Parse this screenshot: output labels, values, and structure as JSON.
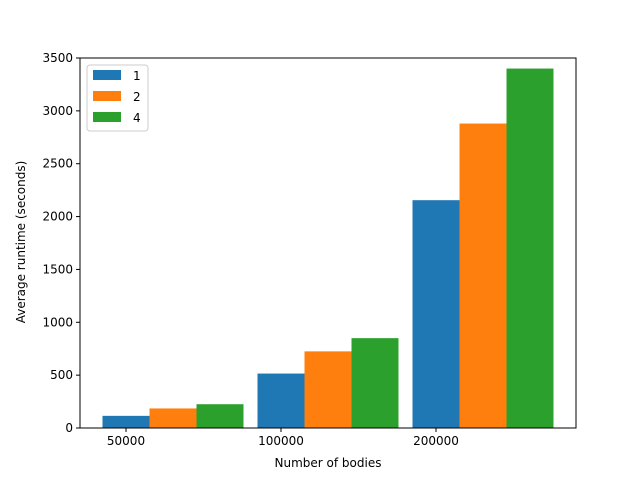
{
  "chart_data": {
    "type": "bar",
    "title": "",
    "xlabel": "Number of bodies",
    "ylabel": "Average runtime (seconds)",
    "categories": [
      "50000",
      "100000",
      "200000"
    ],
    "series": [
      {
        "name": "1",
        "color": "#1f77b4",
        "values": [
          115,
          515,
          2155
        ]
      },
      {
        "name": "2",
        "color": "#ff7f0e",
        "values": [
          185,
          725,
          2880
        ]
      },
      {
        "name": "4",
        "color": "#2ca02c",
        "values": [
          225,
          850,
          3400
        ]
      }
    ],
    "ylim": [
      0,
      3500
    ],
    "yticks": [
      0,
      500,
      1000,
      1500,
      2000,
      2500,
      3000,
      3500
    ],
    "grid": false,
    "legend_position": "top-left"
  }
}
